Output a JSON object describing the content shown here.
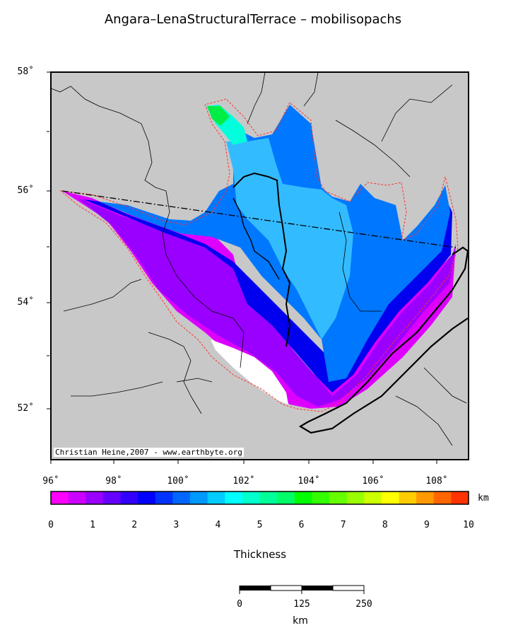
{
  "title": "Angara–LenaStructuralTerrace – mobilisopachs",
  "credit": "Christian Heine,2007 - www.earthbyte.org",
  "latitude_labels": [
    "58˚",
    "56˚",
    "54˚",
    "52˚"
  ],
  "longitude_labels": [
    "96˚",
    "98˚",
    "100˚",
    "102˚",
    "104˚",
    "106˚",
    "108˚"
  ],
  "colorbar": {
    "unit": "km",
    "label": "Thickness",
    "ticks": [
      "0",
      "1",
      "2",
      "3",
      "4",
      "5",
      "6",
      "7",
      "8",
      "9",
      "10"
    ],
    "colors": [
      "#ff00ff",
      "#cc00ff",
      "#9900ff",
      "#6600ff",
      "#3300ff",
      "#0000ff",
      "#0033ff",
      "#0066ff",
      "#0099ff",
      "#00ccff",
      "#00ffff",
      "#00ffcc",
      "#00ff99",
      "#00ff66",
      "#00ff00",
      "#33ff00",
      "#66ff00",
      "#99ff00",
      "#ccff00",
      "#ffff00",
      "#ffcc00",
      "#ff9900",
      "#ff6600",
      "#ff3300"
    ]
  },
  "scalebar": {
    "ticks": [
      "0",
      "125",
      "250"
    ],
    "unit": "km"
  },
  "map_colors": {
    "land": "#c8c8c8",
    "outline": "#ff3333",
    "profile_line": "#000000"
  }
}
